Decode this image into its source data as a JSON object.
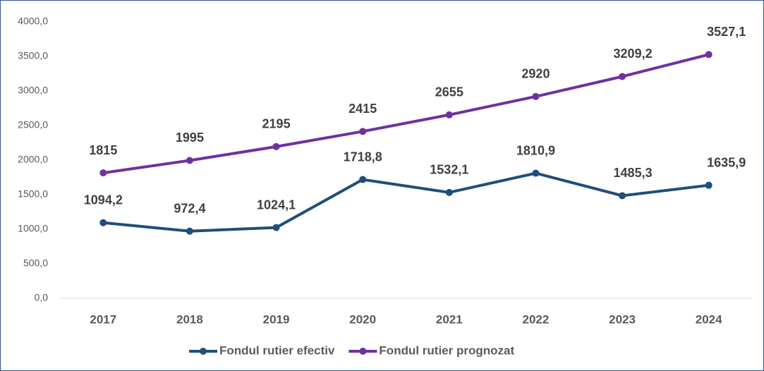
{
  "chart_data": {
    "type": "line",
    "categories": [
      "2017",
      "2018",
      "2019",
      "2020",
      "2021",
      "2022",
      "2023",
      "2024"
    ],
    "series": [
      {
        "name": "Fondul rutier efectiv",
        "color": "#1f4e79",
        "values": [
          1094.2,
          972.4,
          1024.1,
          1718.8,
          1532.1,
          1810.9,
          1485.3,
          1635.9
        ],
        "value_labels": [
          "1094,2",
          "972,4",
          "1024,1",
          "1718,8",
          "1532,1",
          "1810,9",
          "1485,3",
          "1635,9"
        ]
      },
      {
        "name": "Fondul rutier prognozat",
        "color": "#7030a0",
        "values": [
          1815,
          1995,
          2195,
          2415,
          2655,
          2920,
          3209.2,
          3527.1
        ],
        "value_labels": [
          "1815",
          "1995",
          "2195",
          "2415",
          "2655",
          "2920",
          "3209,2",
          "3527,1"
        ]
      }
    ],
    "ylim": [
      0,
      4000
    ],
    "yticks": [
      {
        "value": 0,
        "label": "0,0"
      },
      {
        "value": 500,
        "label": "500,0"
      },
      {
        "value": 1000,
        "label": "1000,0"
      },
      {
        "value": 1500,
        "label": "1500,0"
      },
      {
        "value": 2000,
        "label": "2000,0"
      },
      {
        "value": 2500,
        "label": "2500,0"
      },
      {
        "value": 3000,
        "label": "3000,0"
      },
      {
        "value": 3500,
        "label": "3500,0"
      },
      {
        "value": 4000,
        "label": "4000,0"
      }
    ],
    "grid": false,
    "legend": "bottom"
  }
}
